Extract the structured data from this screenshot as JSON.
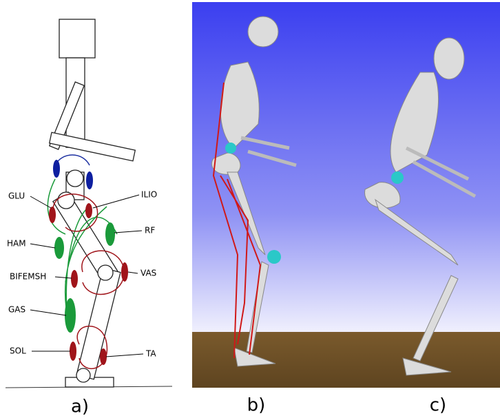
{
  "diagram": {
    "muscle_labels": [
      "GLU",
      "ILIO",
      "HAM",
      "RF",
      "BIFEMSH",
      "VAS",
      "GAS",
      "SOL",
      "TA"
    ],
    "caption": "a)"
  },
  "render_b": {
    "caption": "b)"
  },
  "render_c": {
    "caption": "c)"
  }
}
